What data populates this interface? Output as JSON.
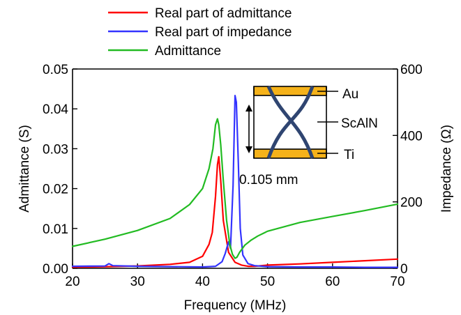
{
  "chart_data": {
    "type": "line",
    "xlabel": "Frequency (MHz)",
    "ylabel_left": "Admittance (S)",
    "ylabel_right": "Impedance (Ω)",
    "xlim": [
      20,
      70
    ],
    "ylim_left": [
      0,
      0.05
    ],
    "ylim_right": [
      0,
      600
    ],
    "x_ticks": [
      20,
      30,
      40,
      50,
      60,
      70
    ],
    "y_ticks_left": [
      "0.00",
      "0.01",
      "0.02",
      "0.03",
      "0.04",
      "0.05"
    ],
    "y_ticks_right": [
      "0",
      "200",
      "400",
      "600"
    ],
    "grid": false,
    "legend_position": "top",
    "series": [
      {
        "name": "Real part of admittance",
        "axis": "left",
        "color": "#ff0000",
        "x": [
          20,
          25,
          30,
          35,
          38,
          40,
          41,
          41.5,
          42,
          42.3,
          42.5,
          42.8,
          43.2,
          44,
          45,
          46,
          47,
          48,
          50,
          55,
          60,
          65,
          70
        ],
        "y": [
          0.0003,
          0.0004,
          0.0006,
          0.001,
          0.0015,
          0.003,
          0.006,
          0.009,
          0.018,
          0.026,
          0.028,
          0.022,
          0.012,
          0.004,
          0.0015,
          0.0008,
          0.0005,
          0.0005,
          0.0008,
          0.0011,
          0.0015,
          0.0019,
          0.0023
        ]
      },
      {
        "name": "Real part of impedance",
        "axis": "right",
        "color": "#3333ff",
        "x": [
          20,
          25,
          25.6,
          26.2,
          30,
          35,
          40,
          42,
          43,
          43.5,
          44,
          44.3,
          44.7,
          45,
          45.2,
          45.5,
          45.8,
          46.2,
          47,
          48,
          50,
          55,
          60,
          65,
          70
        ],
        "y": [
          6,
          7,
          14,
          8,
          6,
          5,
          4,
          6,
          20,
          45,
          80,
          60,
          250,
          520,
          500,
          320,
          120,
          40,
          14,
          8,
          5,
          4,
          4,
          3,
          3
        ]
      },
      {
        "name": "Admittance",
        "axis": "left",
        "color": "#22bb22",
        "x": [
          20,
          25,
          30,
          35,
          38,
          40,
          41,
          41.6,
          42,
          42.3,
          42.5,
          42.8,
          43.2,
          43.7,
          44.2,
          44.6,
          45,
          45.3,
          45.7,
          46.5,
          47.5,
          48.5,
          50,
          55,
          60,
          65,
          70
        ],
        "y": [
          0.0055,
          0.0073,
          0.0095,
          0.0125,
          0.016,
          0.02,
          0.025,
          0.03,
          0.036,
          0.0375,
          0.036,
          0.031,
          0.022,
          0.012,
          0.006,
          0.0035,
          0.0025,
          0.0028,
          0.004,
          0.0058,
          0.0071,
          0.0081,
          0.0093,
          0.0115,
          0.013,
          0.0145,
          0.0161
        ]
      }
    ],
    "inset": {
      "labels": {
        "top_electrode": "Au",
        "piezo_layer": "ScAlN",
        "bottom_electrode": "Ti",
        "thickness": "0.105 mm"
      },
      "electrode_color": "#f5b21a",
      "strain_color": "#2f4571"
    }
  }
}
